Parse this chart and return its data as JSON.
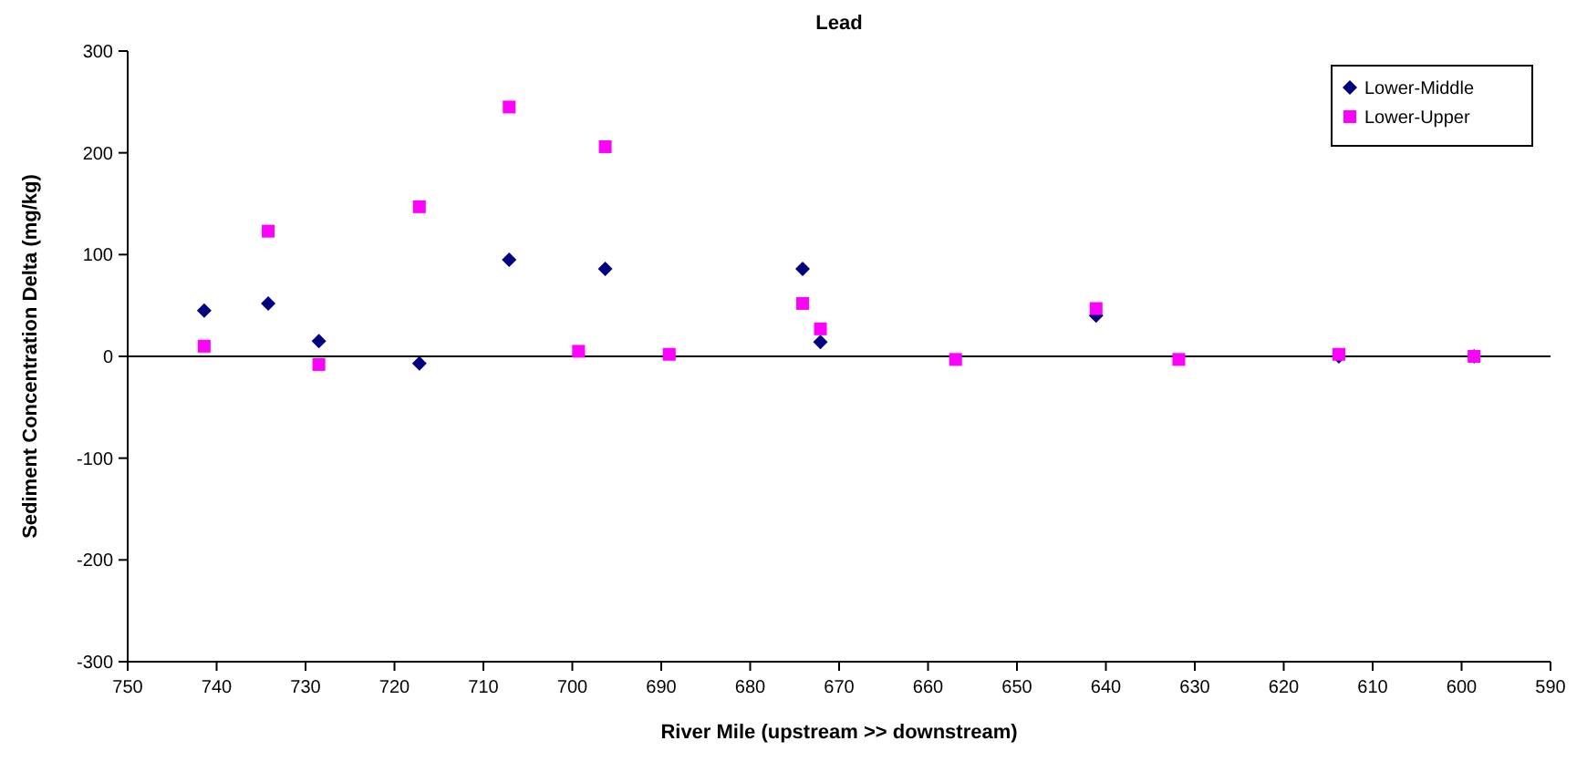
{
  "chart_data": {
    "type": "scatter",
    "title": "Lead",
    "xlabel": "River Mile (upstream >> downstream)",
    "ylabel": "Sediment Concentration Delta (mg/kg)",
    "xlim": [
      750,
      590
    ],
    "xticks": [
      750,
      740,
      730,
      720,
      710,
      700,
      690,
      680,
      670,
      660,
      650,
      640,
      630,
      620,
      610,
      600,
      590
    ],
    "ylim": [
      -300,
      300
    ],
    "yticks": [
      -300,
      -200,
      -100,
      0,
      100,
      200,
      300
    ],
    "grid": false,
    "legend": "top right",
    "ref_lines": [
      {
        "axis": "y",
        "value": 0,
        "color": "#000000"
      }
    ],
    "series": [
      {
        "name": "Lower-Middle",
        "color": "#000080",
        "marker": "diamond",
        "x": [
          741.4,
          734.2,
          728.5,
          717.2,
          707.1,
          696.3,
          674.1,
          672.1,
          641.1,
          613.8,
          598.6
        ],
        "values": [
          45,
          52,
          15,
          -7,
          95,
          86,
          86,
          14,
          40,
          0,
          0
        ]
      },
      {
        "name": "Lower-Upper",
        "color": "#ff00ff",
        "marker": "square",
        "x": [
          741.4,
          734.2,
          728.5,
          717.2,
          707.1,
          699.3,
          696.3,
          689.1,
          674.1,
          672.1,
          656.9,
          641.1,
          631.8,
          613.8,
          598.6
        ],
        "values": [
          10,
          123,
          -8,
          147,
          245,
          5,
          206,
          2,
          52,
          27,
          -3,
          47,
          -3,
          2,
          0
        ]
      }
    ]
  }
}
